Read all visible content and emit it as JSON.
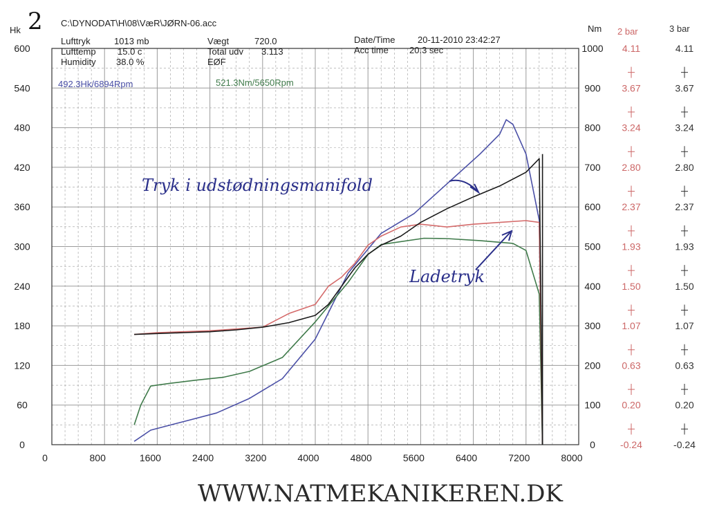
{
  "header": {
    "sheet_number": "2",
    "file_path": "C:\\DYNODAT\\H\\08\\VæR\\JØRN-06.acc",
    "lufttryk_label": "Lufttryk",
    "lufttryk_value": "1013 mb",
    "lufttemp_label": "Lufttemp",
    "lufttemp_value": "15.0 c",
    "humidity_label": "Humidity",
    "humidity_value": "38.0 %",
    "vaegt_label": "Vægt",
    "vaegt_value": "720.0",
    "total_udv_label": "Total udv",
    "total_udv_value": "3.113",
    "eof_label": "EØF",
    "datetime_label": "Date/Time",
    "datetime_value": "20-11-2010 23:42:27",
    "acctime_label": "Acc time",
    "acctime_value": "20.3 sec"
  },
  "readouts": {
    "power_peak": "492.3Hk/6894Rpm",
    "torque_peak": "521.3Nm/5650Rpm"
  },
  "annotations": {
    "exhaust_manifold_label": "Tryk i udstødningsmanifold",
    "boost_label": "Ladetryk"
  },
  "footer": {
    "website": "WWW.NATMEKANIKEREN.DK"
  },
  "colors": {
    "power": "#4a4fa6",
    "torque": "#3f7a4a",
    "boost": "#d46a6a",
    "exhaust": "#1a1a1a",
    "grid": "#9a9a9a",
    "scale_2bar": "#cc6666",
    "scale_3bar": "#333333"
  },
  "chart_data": {
    "type": "line",
    "x_axis": {
      "range": [
        0,
        8000
      ],
      "ticks": [
        "0",
        "800",
        "1600",
        "2400",
        "3200",
        "4000",
        "4800",
        "5600",
        "6400",
        "7200",
        "8000"
      ]
    },
    "y_left": {
      "label": "Hk",
      "range": [
        0,
        600
      ],
      "ticks": [
        "0",
        "60",
        "120",
        "180",
        "240",
        "300",
        "360",
        "420",
        "480",
        "540",
        "600"
      ]
    },
    "y_torque": {
      "label": "Nm",
      "range": [
        0,
        1000
      ],
      "ticks": [
        "0",
        "100",
        "200",
        "300",
        "400",
        "500",
        "600",
        "700",
        "800",
        "900",
        "1000"
      ]
    },
    "y_2bar": {
      "label": "2 bar",
      "range": [
        -0.24,
        4.11
      ],
      "ticks": [
        "-0.24",
        "0.20",
        "0.63",
        "1.07",
        "1.50",
        "1.93",
        "2.37",
        "2.80",
        "3.24",
        "3.67",
        "4.11"
      ]
    },
    "y_3bar": {
      "label": "3 bar",
      "range": [
        -0.24,
        4.11
      ],
      "ticks": [
        "-0.24",
        "0.20",
        "0.63",
        "1.07",
        "1.50",
        "1.93",
        "2.37",
        "2.80",
        "3.24",
        "3.67",
        "4.11"
      ]
    },
    "grid": true,
    "series": [
      {
        "key": "power",
        "axis": "hk",
        "points": [
          [
            1250,
            5
          ],
          [
            1500,
            22
          ],
          [
            2000,
            35
          ],
          [
            2500,
            48
          ],
          [
            3000,
            70
          ],
          [
            3500,
            100
          ],
          [
            4000,
            160
          ],
          [
            4200,
            200
          ],
          [
            4500,
            260
          ],
          [
            5000,
            320
          ],
          [
            5500,
            350
          ],
          [
            6000,
            395
          ],
          [
            6500,
            440
          ],
          [
            6800,
            470
          ],
          [
            6900,
            492
          ],
          [
            7000,
            485
          ],
          [
            7200,
            440
          ],
          [
            7400,
            340
          ],
          [
            7450,
            0
          ]
        ]
      },
      {
        "key": "torque",
        "axis": "nm",
        "points": [
          [
            1250,
            50
          ],
          [
            1350,
            100
          ],
          [
            1500,
            148
          ],
          [
            1800,
            155
          ],
          [
            2200,
            163
          ],
          [
            2600,
            170
          ],
          [
            3000,
            185
          ],
          [
            3500,
            220
          ],
          [
            4000,
            310
          ],
          [
            4500,
            410
          ],
          [
            4800,
            480
          ],
          [
            5000,
            505
          ],
          [
            5650,
            521
          ],
          [
            6000,
            520
          ],
          [
            6500,
            515
          ],
          [
            7000,
            508
          ],
          [
            7200,
            490
          ],
          [
            7400,
            380
          ],
          [
            7450,
            0
          ]
        ]
      },
      {
        "key": "boost",
        "axis": "bar",
        "points": [
          [
            1250,
            0.97
          ],
          [
            1600,
            0.99
          ],
          [
            2000,
            1.0
          ],
          [
            2400,
            1.01
          ],
          [
            2800,
            1.03
          ],
          [
            3200,
            1.05
          ],
          [
            3600,
            1.2
          ],
          [
            4000,
            1.3
          ],
          [
            4200,
            1.5
          ],
          [
            4400,
            1.6
          ],
          [
            4600,
            1.75
          ],
          [
            4800,
            1.95
          ],
          [
            5000,
            2.05
          ],
          [
            5300,
            2.15
          ],
          [
            5600,
            2.18
          ],
          [
            6000,
            2.15
          ],
          [
            6400,
            2.18
          ],
          [
            6800,
            2.2
          ],
          [
            7200,
            2.22
          ],
          [
            7400,
            2.2
          ],
          [
            7450,
            0
          ]
        ]
      },
      {
        "key": "exhaust",
        "axis": "bar",
        "points": [
          [
            1250,
            0.97
          ],
          [
            1600,
            0.98
          ],
          [
            2000,
            0.99
          ],
          [
            2400,
            1.0
          ],
          [
            2800,
            1.02
          ],
          [
            3200,
            1.05
          ],
          [
            3600,
            1.1
          ],
          [
            4000,
            1.18
          ],
          [
            4200,
            1.3
          ],
          [
            4400,
            1.5
          ],
          [
            4600,
            1.7
          ],
          [
            4800,
            1.85
          ],
          [
            5000,
            1.95
          ],
          [
            5300,
            2.05
          ],
          [
            5600,
            2.2
          ],
          [
            6000,
            2.35
          ],
          [
            6400,
            2.48
          ],
          [
            6800,
            2.6
          ],
          [
            7200,
            2.75
          ],
          [
            7400,
            2.9
          ],
          [
            7450,
            0
          ]
        ]
      }
    ]
  }
}
